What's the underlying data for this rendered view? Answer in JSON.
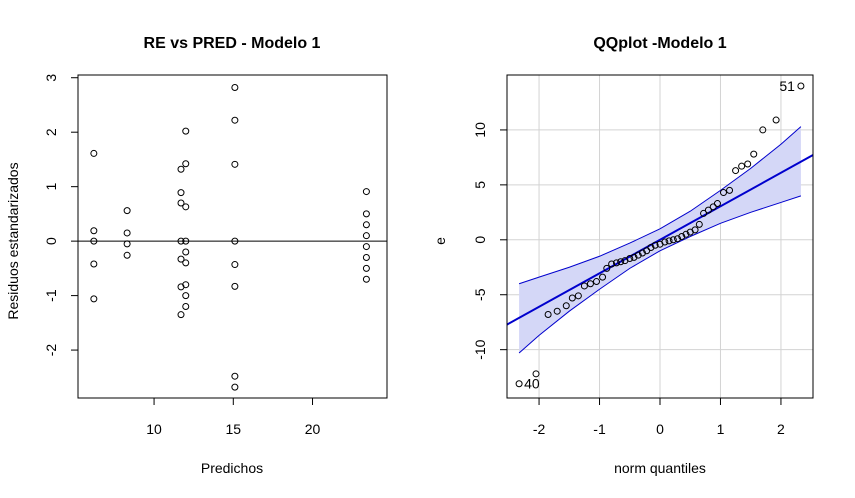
{
  "chart_data": [
    {
      "type": "scatter",
      "title": "RE vs PRED - Modelo 1",
      "xlabel": "Predichos",
      "ylabel": "Residuos estandarizados",
      "xlim": [
        5.2,
        24.7
      ],
      "ylim": [
        -2.88,
        3.05
      ],
      "xticks": [
        10,
        15,
        20
      ],
      "yticks": [
        -2,
        -1,
        0,
        1,
        2,
        3
      ],
      "grid": false,
      "hline": 0,
      "points": [
        {
          "x": 6.2,
          "y": 1.61
        },
        {
          "x": 6.2,
          "y": 0.19
        },
        {
          "x": 6.2,
          "y": 0.0
        },
        {
          "x": 6.2,
          "y": -0.42
        },
        {
          "x": 6.2,
          "y": -1.06
        },
        {
          "x": 8.3,
          "y": 0.56
        },
        {
          "x": 8.3,
          "y": 0.15
        },
        {
          "x": 8.3,
          "y": -0.05
        },
        {
          "x": 8.3,
          "y": -0.26
        },
        {
          "x": 11.7,
          "y": 1.32
        },
        {
          "x": 11.7,
          "y": 0.89
        },
        {
          "x": 11.7,
          "y": 0.7
        },
        {
          "x": 11.7,
          "y": 0.0
        },
        {
          "x": 11.7,
          "y": -0.33
        },
        {
          "x": 11.7,
          "y": -0.84
        },
        {
          "x": 11.7,
          "y": -1.35
        },
        {
          "x": 12.0,
          "y": 2.02
        },
        {
          "x": 12.0,
          "y": 1.42
        },
        {
          "x": 12.0,
          "y": 0.63
        },
        {
          "x": 12.0,
          "y": 0.0
        },
        {
          "x": 12.0,
          "y": -0.2
        },
        {
          "x": 12.0,
          "y": -0.4
        },
        {
          "x": 12.0,
          "y": -0.8
        },
        {
          "x": 12.0,
          "y": -1.0
        },
        {
          "x": 12.0,
          "y": -1.2
        },
        {
          "x": 15.1,
          "y": 2.82
        },
        {
          "x": 15.1,
          "y": 2.22
        },
        {
          "x": 15.1,
          "y": 1.41
        },
        {
          "x": 15.1,
          "y": 0.0
        },
        {
          "x": 15.1,
          "y": -0.43
        },
        {
          "x": 15.1,
          "y": -0.83
        },
        {
          "x": 15.1,
          "y": -2.48
        },
        {
          "x": 15.1,
          "y": -2.68
        },
        {
          "x": 23.4,
          "y": 0.91
        },
        {
          "x": 23.4,
          "y": 0.5
        },
        {
          "x": 23.4,
          "y": 0.3
        },
        {
          "x": 23.4,
          "y": 0.1
        },
        {
          "x": 23.4,
          "y": -0.1
        },
        {
          "x": 23.4,
          "y": -0.3
        },
        {
          "x": 23.4,
          "y": -0.5
        },
        {
          "x": 23.4,
          "y": -0.7
        }
      ]
    },
    {
      "type": "scatter",
      "title": "QQplot -Modelo 1",
      "xlabel": "norm quantiles",
      "ylabel": "e",
      "xlim": [
        -2.53,
        2.53
      ],
      "ylim": [
        -14.4,
        15.0
      ],
      "xticks": [
        -2,
        -1,
        0,
        1,
        2
      ],
      "yticks": [
        -10,
        -5,
        0,
        5,
        10
      ],
      "grid": true,
      "reference_line": {
        "intercept": 0.0,
        "slope": 3.05
      },
      "envelope": {
        "x": [
          -2.33,
          -2.0,
          -1.5,
          -1.0,
          -0.5,
          0.0,
          0.5,
          1.0,
          1.5,
          2.0,
          2.33
        ],
        "upper": [
          -4.0,
          -3.4,
          -2.5,
          -1.5,
          -0.3,
          1.0,
          2.6,
          4.5,
          6.5,
          8.7,
          10.3
        ],
        "lower": [
          -10.3,
          -8.7,
          -6.5,
          -4.5,
          -2.6,
          -1.0,
          0.3,
          1.5,
          2.5,
          3.4,
          4.0
        ]
      },
      "points": [
        {
          "x": -2.33,
          "y": -13.1
        },
        {
          "x": -2.05,
          "y": -12.2
        },
        {
          "x": -1.85,
          "y": -6.8
        },
        {
          "x": -1.7,
          "y": -6.5
        },
        {
          "x": -1.55,
          "y": -6.0
        },
        {
          "x": -1.45,
          "y": -5.3
        },
        {
          "x": -1.35,
          "y": -5.1
        },
        {
          "x": -1.25,
          "y": -4.2
        },
        {
          "x": -1.15,
          "y": -4.0
        },
        {
          "x": -1.05,
          "y": -3.8
        },
        {
          "x": -0.95,
          "y": -3.4
        },
        {
          "x": -0.88,
          "y": -2.6
        },
        {
          "x": -0.8,
          "y": -2.2
        },
        {
          "x": -0.72,
          "y": -2.1
        },
        {
          "x": -0.65,
          "y": -2.0
        },
        {
          "x": -0.58,
          "y": -1.9
        },
        {
          "x": -0.5,
          "y": -1.7
        },
        {
          "x": -0.43,
          "y": -1.6
        },
        {
          "x": -0.36,
          "y": -1.4
        },
        {
          "x": -0.29,
          "y": -1.2
        },
        {
          "x": -0.22,
          "y": -1.0
        },
        {
          "x": -0.15,
          "y": -0.7
        },
        {
          "x": -0.08,
          "y": -0.5
        },
        {
          "x": 0.0,
          "y": -0.4
        },
        {
          "x": 0.08,
          "y": -0.2
        },
        {
          "x": 0.15,
          "y": -0.1
        },
        {
          "x": 0.22,
          "y": 0.0
        },
        {
          "x": 0.29,
          "y": 0.1
        },
        {
          "x": 0.36,
          "y": 0.3
        },
        {
          "x": 0.43,
          "y": 0.5
        },
        {
          "x": 0.5,
          "y": 0.7
        },
        {
          "x": 0.58,
          "y": 0.9
        },
        {
          "x": 0.65,
          "y": 1.4
        },
        {
          "x": 0.72,
          "y": 2.4
        },
        {
          "x": 0.8,
          "y": 2.7
        },
        {
          "x": 0.88,
          "y": 3.0
        },
        {
          "x": 0.95,
          "y": 3.3
        },
        {
          "x": 1.05,
          "y": 4.3
        },
        {
          "x": 1.15,
          "y": 4.5
        },
        {
          "x": 1.25,
          "y": 6.3
        },
        {
          "x": 1.35,
          "y": 6.7
        },
        {
          "x": 1.45,
          "y": 6.9
        },
        {
          "x": 1.55,
          "y": 7.8
        },
        {
          "x": 1.7,
          "y": 10.0
        },
        {
          "x": 1.92,
          "y": 10.9
        },
        {
          "x": 2.33,
          "y": 14.0
        }
      ],
      "labels": [
        {
          "text": "51",
          "x": 2.33,
          "y": 14.0
        },
        {
          "text": "40",
          "x": -2.33,
          "y": -13.1
        }
      ]
    }
  ],
  "colors": {
    "envelope_fill": "#d4d7f7",
    "envelope_line": "#0000cd",
    "reference_line": "#0000cd",
    "grid": "#d3d3d3",
    "points": "#000000"
  }
}
